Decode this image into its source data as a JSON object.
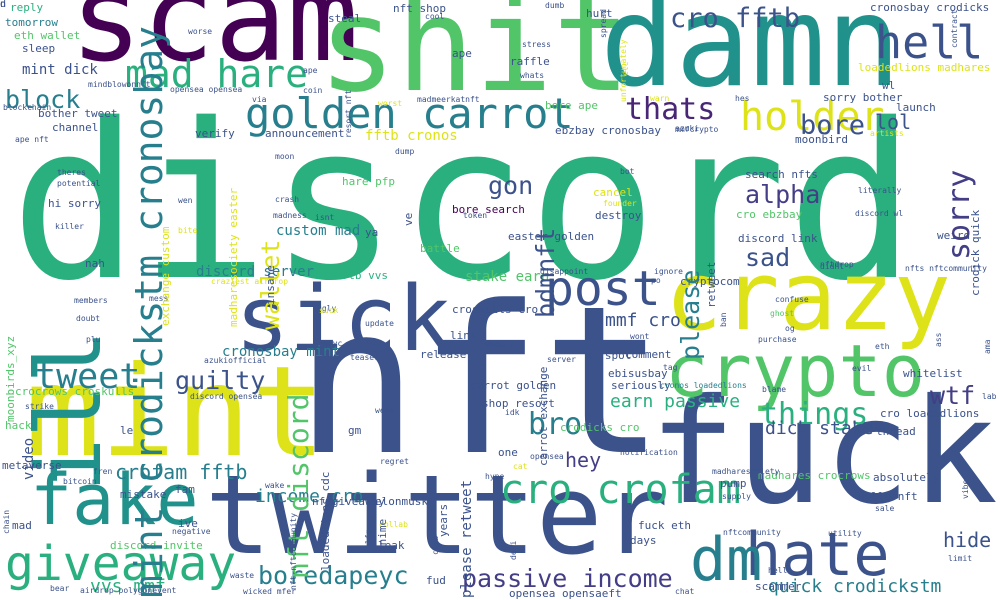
{
  "palette": {
    "yellow": "#dde318",
    "lime": "#98d83e",
    "green": "#52c569",
    "teal_green": "#2ab07f",
    "teal": "#21918c",
    "blue_teal": "#277f8e",
    "blue": "#33638d",
    "indigo": "#3b528b",
    "purple": "#433e85",
    "dark_purple": "#482575",
    "deep_purple": "#440154"
  },
  "words": [
    {
      "text": "discord",
      "color": "#2ab07f"
    },
    {
      "text": "nft",
      "color": "#3b528b"
    },
    {
      "text": "scam",
      "color": "#440154"
    },
    {
      "text": "shit",
      "color": "#52c569"
    },
    {
      "text": "damn",
      "color": "#21918c"
    },
    {
      "text": "fuck",
      "color": "#3b528b"
    },
    {
      "text": "twitter",
      "color": "#3b528b"
    },
    {
      "text": "mint",
      "color": "#dde318"
    },
    {
      "text": "crazy",
      "color": "#dde318"
    },
    {
      "text": "crypto",
      "color": "#52c569"
    },
    {
      "text": "sick",
      "color": "#3b528b"
    },
    {
      "text": "ill",
      "color": "#21918c"
    },
    {
      "text": "fake",
      "color": "#21918c"
    },
    {
      "text": "hate",
      "color": "#3b528b"
    },
    {
      "text": "dm",
      "color": "#277f8e"
    },
    {
      "text": "giveaway",
      "color": "#2ab07f"
    },
    {
      "text": "post",
      "color": "#3b528b"
    },
    {
      "text": "hell",
      "color": "#3b528b"
    },
    {
      "text": "golden carrot",
      "color": "#277f8e"
    },
    {
      "text": "mad hare",
      "color": "#2ab07f"
    },
    {
      "text": "holder",
      "color": "#dde318"
    },
    {
      "text": "cro crofam",
      "color": "#2ab07f"
    },
    {
      "text": "passive income",
      "color": "#433e85"
    },
    {
      "text": "boredapeyc",
      "color": "#277f8e"
    },
    {
      "text": "tweet",
      "color": "#277f8e"
    },
    {
      "text": "things",
      "color": "#2ab07f"
    },
    {
      "text": "cro fftb",
      "color": "#3b528b"
    },
    {
      "text": "bore",
      "color": "#3b528b"
    },
    {
      "text": "thats",
      "color": "#482575"
    },
    {
      "text": "block",
      "color": "#277f8e"
    },
    {
      "text": "alpha",
      "color": "#433e85"
    },
    {
      "text": "sad",
      "color": "#3b528b"
    },
    {
      "text": "wtf",
      "color": "#433e85"
    },
    {
      "text": "bro",
      "color": "#277f8e"
    },
    {
      "text": "guilty",
      "color": "#3b528b"
    },
    {
      "text": "crofam fftb",
      "color": "#277f8e"
    },
    {
      "text": "hey",
      "color": "#433e85"
    },
    {
      "text": "hide",
      "color": "#3b528b"
    },
    {
      "text": "gon",
      "color": "#3b528b"
    },
    {
      "text": "lol",
      "color": "#3b528b"
    },
    {
      "text": "mmf cro",
      "color": "#3b528b"
    },
    {
      "text": "dick stake",
      "color": "#3b528b"
    },
    {
      "text": "vvs mmf",
      "color": "#2ab07f"
    },
    {
      "text": "quick crodickstm",
      "color": "#277f8e"
    },
    {
      "text": "earn passive",
      "color": "#2ab07f"
    },
    {
      "text": "income cro",
      "color": "#277f8e"
    },
    {
      "text": "cronosbay mint",
      "color": "#277f8e"
    },
    {
      "text": "stake earn",
      "color": "#52c569"
    },
    {
      "text": "custom mad",
      "color": "#277f8e"
    },
    {
      "text": "hare pfp",
      "color": "#52c569"
    },
    {
      "text": "discord server",
      "color": "#277f8e"
    },
    {
      "text": "fftb cronos",
      "color": "#dde318"
    },
    {
      "text": "bore search",
      "color": "#440154"
    },
    {
      "text": "discord link",
      "color": "#3b528b"
    },
    {
      "text": "cro ebzbay",
      "color": "#52c569"
    },
    {
      "text": "search nfts",
      "color": "#3b528b"
    },
    {
      "text": "moonbird",
      "color": "#3b528b"
    },
    {
      "text": "ebzbay cronosbay",
      "color": "#3b528b"
    },
    {
      "text": "bore ape",
      "color": "#52c569"
    },
    {
      "text": "announcement",
      "color": "#3b528b"
    },
    {
      "text": "verify",
      "color": "#3b528b"
    },
    {
      "text": "mint dick",
      "color": "#3b528b"
    },
    {
      "text": "bother tweet",
      "color": "#3b528b"
    },
    {
      "text": "channel",
      "color": "#3b528b"
    },
    {
      "text": "hi sorry",
      "color": "#3b528b"
    },
    {
      "text": "reply",
      "color": "#2ab07f"
    },
    {
      "text": "tomorrow",
      "color": "#277f8e"
    },
    {
      "text": "eth wallet",
      "color": "#52c569"
    },
    {
      "text": "sleep",
      "color": "#3b528b"
    },
    {
      "text": "steal",
      "color": "#3b528b"
    },
    {
      "text": "nft shop",
      "color": "#3b528b"
    },
    {
      "text": "cool",
      "color": "#3b528b"
    },
    {
      "text": "ape",
      "color": "#3b528b"
    },
    {
      "text": "resort nft",
      "color": "#3b528b"
    },
    {
      "text": "raffle",
      "color": "#3b528b"
    },
    {
      "text": "stress",
      "color": "#3b528b"
    },
    {
      "text": "whats",
      "color": "#3b528b"
    },
    {
      "text": "hurt",
      "color": "#3b528b"
    },
    {
      "text": "spread",
      "color": "#3b528b"
    },
    {
      "text": "unfortunately",
      "color": "#dde318"
    },
    {
      "text": "cronosbay crodicks",
      "color": "#3b528b"
    },
    {
      "text": "contract",
      "color": "#3b528b"
    },
    {
      "text": "loadedlions madhares",
      "color": "#dde318"
    },
    {
      "text": "launch",
      "color": "#3b528b"
    },
    {
      "text": "wl",
      "color": "#3b528b"
    },
    {
      "text": "sorry bother",
      "color": "#3b528b"
    },
    {
      "text": "artists",
      "color": "#dde318"
    },
    {
      "text": "madmeerkatnft",
      "color": "#3b528b"
    },
    {
      "text": "mindblowonnft",
      "color": "#3b528b"
    },
    {
      "text": "opensea opensea",
      "color": "#3b528b"
    },
    {
      "text": "blockchain",
      "color": "#3b528b"
    },
    {
      "text": "ape nft",
      "color": "#3b528b"
    },
    {
      "text": "theres",
      "color": "#3b528b"
    },
    {
      "text": "potential",
      "color": "#3b528b"
    },
    {
      "text": "killer",
      "color": "#3b528b"
    },
    {
      "text": "nah",
      "color": "#3b528b"
    },
    {
      "text": "members",
      "color": "#3b528b"
    },
    {
      "text": "doubt",
      "color": "#3b528b"
    },
    {
      "text": "plu",
      "color": "#3b528b"
    },
    {
      "text": "moonbirds_xyz",
      "color": "#52c569"
    },
    {
      "text": "crocrows croskulls",
      "color": "#52c569"
    },
    {
      "text": "strike",
      "color": "#3b528b"
    },
    {
      "text": "hack",
      "color": "#52c569"
    },
    {
      "text": "le",
      "color": "#3b528b"
    },
    {
      "text": "metaverse",
      "color": "#3b528b"
    },
    {
      "text": "bitcoin",
      "color": "#3b528b"
    },
    {
      "text": "chain",
      "color": "#3b528b"
    },
    {
      "text": "mad",
      "color": "#3b528b"
    },
    {
      "text": "bear",
      "color": "#3b528b"
    },
    {
      "text": "airdrop polygonevent",
      "color": "#3b528b"
    },
    {
      "text": "wicked mfer",
      "color": "#3b528b"
    },
    {
      "text": "fam",
      "color": "#3b528b"
    },
    {
      "text": "mistake",
      "color": "#3b528b"
    },
    {
      "text": "ive",
      "color": "#3b528b"
    },
    {
      "text": "negative",
      "color": "#3b528b"
    },
    {
      "text": "discord invite",
      "color": "#52c569"
    },
    {
      "text": "fren",
      "color": "#3b528b"
    },
    {
      "text": "wake",
      "color": "#3b528b"
    },
    {
      "text": "waste",
      "color": "#3b528b"
    },
    {
      "text": "nftgiveaway",
      "color": "#3b528b"
    },
    {
      "text": "elonmusk",
      "color": "#3b528b"
    },
    {
      "text": "collab",
      "color": "#dde318"
    },
    {
      "text": "club",
      "color": "#3b528b"
    },
    {
      "text": "anime",
      "color": "#3b528b"
    },
    {
      "text": "leak",
      "color": "#3b528b"
    },
    {
      "text": "fud",
      "color": "#3b528b"
    },
    {
      "text": "defi",
      "color": "#3b528b"
    },
    {
      "text": "opensea opensaeft",
      "color": "#3b528b"
    },
    {
      "text": "chat",
      "color": "#3b528b"
    },
    {
      "text": "scammer",
      "color": "#3b528b"
    },
    {
      "text": "hello",
      "color": "#3b528b"
    },
    {
      "text": "days",
      "color": "#3b528b"
    },
    {
      "text": "fuck eth",
      "color": "#3b528b"
    },
    {
      "text": "nftcommunity",
      "color": "#3b528b"
    },
    {
      "text": "utility",
      "color": "#3b528b"
    },
    {
      "text": "sale",
      "color": "#3b528b"
    },
    {
      "text": "limit",
      "color": "#3b528b"
    },
    {
      "text": "hello nft",
      "color": "#3b528b"
    },
    {
      "text": "absolutely",
      "color": "#3b528b"
    },
    {
      "text": "supply",
      "color": "#3b528b"
    },
    {
      "text": "vibe",
      "color": "#3b528b"
    },
    {
      "text": "madhares crocrows",
      "color": "#52c569"
    },
    {
      "text": "thread",
      "color": "#3b528b"
    },
    {
      "text": "lab",
      "color": "#3b528b"
    },
    {
      "text": "cro loadedlions",
      "color": "#3b528b"
    },
    {
      "text": "whitelist",
      "color": "#3b528b"
    },
    {
      "text": "madharesociety",
      "color": "#3b528b"
    },
    {
      "text": "blame",
      "color": "#3b528b"
    },
    {
      "text": "ama",
      "color": "#3b528b"
    },
    {
      "text": "evil",
      "color": "#3b528b"
    },
    {
      "text": "eth",
      "color": "#3b528b"
    },
    {
      "text": "ass",
      "color": "#3b528b"
    },
    {
      "text": "og",
      "color": "#3b528b"
    },
    {
      "text": "purchase",
      "color": "#3b528b"
    },
    {
      "text": "ghost",
      "color": "#52c569"
    },
    {
      "text": "confuse",
      "color": "#3b528b"
    },
    {
      "text": "cryptocom",
      "color": "#3b528b"
    },
    {
      "text": "nftdrop",
      "color": "#3b528b"
    },
    {
      "text": "didnt",
      "color": "#3b528b"
    },
    {
      "text": "nfts nftcommunity",
      "color": "#3b528b"
    },
    {
      "text": "weird",
      "color": "#3b528b"
    },
    {
      "text": "discord wl",
      "color": "#3b528b"
    },
    {
      "text": "literally",
      "color": "#3b528b"
    },
    {
      "text": "crodick quick",
      "color": "#3b528b"
    },
    {
      "text": "sorry",
      "color": "#433e85"
    },
    {
      "text": "ebisusbay",
      "color": "#3b528b"
    },
    {
      "text": "notification",
      "color": "#3b528b"
    },
    {
      "text": "crodicks cro",
      "color": "#52c569"
    },
    {
      "text": "seriously",
      "color": "#3b528b"
    },
    {
      "text": "comment",
      "color": "#3b528b"
    },
    {
      "text": "wont",
      "color": "#3b528b"
    },
    {
      "text": "disappoint",
      "color": "#3b528b"
    },
    {
      "text": "ignore",
      "color": "#3b528b"
    },
    {
      "text": "po",
      "color": "#3b528b"
    },
    {
      "text": "wl spot",
      "color": "#3b528b"
    },
    {
      "text": "server",
      "color": "#3b528b"
    },
    {
      "text": "ban",
      "color": "#3b528b"
    },
    {
      "text": "release",
      "color": "#3b528b"
    },
    {
      "text": "doesnt",
      "color": "#3b528b"
    },
    {
      "text": "carrot golden",
      "color": "#3b528b"
    },
    {
      "text": "shop resort",
      "color": "#3b528b"
    },
    {
      "text": "idk",
      "color": "#3b528b"
    },
    {
      "text": "cat",
      "color": "#dde318"
    },
    {
      "text": "hype",
      "color": "#3b528b"
    },
    {
      "text": "one",
      "color": "#3b528b"
    },
    {
      "text": "opensea",
      "color": "#3b528b"
    },
    {
      "text": "pump",
      "color": "#3b528b"
    },
    {
      "text": "link",
      "color": "#3b528b"
    },
    {
      "text": "croskulls cro",
      "color": "#3b528b"
    },
    {
      "text": "easter golden",
      "color": "#3b528b"
    },
    {
      "text": "token",
      "color": "#3b528b"
    },
    {
      "text": "destroy",
      "color": "#3b528b"
    },
    {
      "text": "founder",
      "color": "#dde318"
    },
    {
      "text": "cancel",
      "color": "#dde318"
    },
    {
      "text": "bot",
      "color": "#3b528b"
    },
    {
      "text": "mmfcrypto",
      "color": "#3b528b"
    },
    {
      "text": "dump",
      "color": "#3b528b"
    },
    {
      "text": "moon",
      "color": "#3b528b"
    },
    {
      "text": "crash",
      "color": "#3b528b"
    },
    {
      "text": "madness",
      "color": "#3b528b"
    },
    {
      "text": "isnt",
      "color": "#3b528b"
    },
    {
      "text": "ya",
      "color": "#3b528b"
    },
    {
      "text": "battle",
      "color": "#52c569"
    },
    {
      "text": "fftb vvs",
      "color": "#2ab07f"
    },
    {
      "text": "mess",
      "color": "#3b528b"
    },
    {
      "text": "ugly",
      "color": "#3b528b"
    },
    {
      "text": "suck",
      "color": "#dde318"
    },
    {
      "text": "bayc",
      "color": "#3b528b"
    },
    {
      "text": "update",
      "color": "#3b528b"
    },
    {
      "text": "azukiofficial",
      "color": "#3b528b"
    },
    {
      "text": "discord opensea",
      "color": "#3b528b"
    },
    {
      "text": "teaser",
      "color": "#3b528b"
    },
    {
      "text": "weve",
      "color": "#3b528b"
    },
    {
      "text": "gm",
      "color": "#3b528b"
    },
    {
      "text": "regret",
      "color": "#3b528b"
    },
    {
      "text": "craziest airdrop",
      "color": "#dde318"
    },
    {
      "text": "wen",
      "color": "#3b528b"
    },
    {
      "text": "bite",
      "color": "#dde318"
    },
    {
      "text": "worse",
      "color": "#3b528b"
    },
    {
      "text": "ape",
      "color": "#3b528b"
    },
    {
      "text": "coin",
      "color": "#3b528b"
    },
    {
      "text": "via",
      "color": "#3b528b"
    },
    {
      "text": "worst",
      "color": "#dde318"
    },
    {
      "text": "warn",
      "color": "#dde318"
    },
    {
      "text": "hes",
      "color": "#3b528b"
    },
    {
      "text": "azuki",
      "color": "#3b528b"
    },
    {
      "text": "dumb",
      "color": "#3b528b"
    },
    {
      "text": "etc",
      "color": "#dde318"
    },
    {
      "text": "wallet",
      "color": "#dde318"
    },
    {
      "text": "please",
      "color": "#277f8e"
    },
    {
      "text": "bdmnft",
      "color": "#3b528b"
    },
    {
      "text": "insane",
      "color": "#3b528b"
    },
    {
      "text": "exchange custom",
      "color": "#dde318"
    },
    {
      "text": "madharesociety easter",
      "color": "#dde318"
    },
    {
      "text": "video",
      "color": "#3b528b"
    },
    {
      "text": "mint crodickstm cronosbay",
      "color": "#277f8e"
    },
    {
      "text": "nft discord",
      "color": "#52c569"
    },
    {
      "text": "ve",
      "color": "#3b528b"
    },
    {
      "text": "retweet",
      "color": "#3b528b"
    },
    {
      "text": "loadedlions cdc",
      "color": "#3b528b"
    },
    {
      "text": "nft nftcommunity",
      "color": "#3b528b"
    },
    {
      "text": "lfg",
      "color": "#3b528b"
    },
    {
      "text": "years",
      "color": "#3b528b"
    },
    {
      "text": "please retweet",
      "color": "#3b528b"
    },
    {
      "text": "carrot exchange",
      "color": "#3b528b"
    },
    {
      "text": "cronos loadedlions",
      "color": "#277f8e"
    },
    {
      "text": "tag",
      "color": "#3b528b"
    },
    {
      "text": "n",
      "color": "#3b528b"
    },
    {
      "text": "d",
      "color": "#3b528b"
    }
  ]
}
